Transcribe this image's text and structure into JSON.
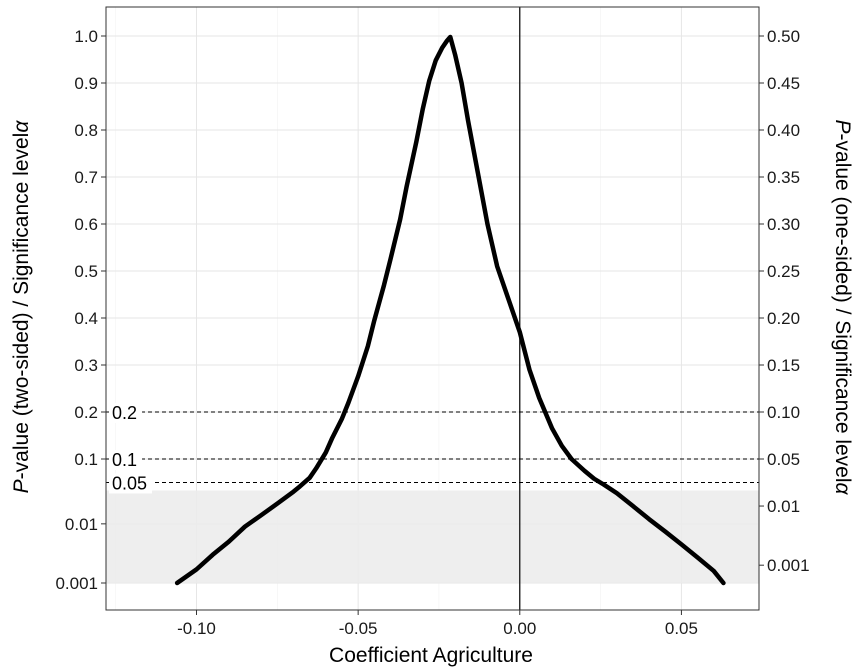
{
  "chart_data": {
    "type": "line",
    "xlabel": "Coefficient Agriculture",
    "ylabel_left_italic": "P",
    "ylabel_left_rest": "-value (two-sided) / Significance level",
    "ylabel_left_alpha": "α",
    "ylabel_right_italic": "P",
    "ylabel_right_rest": "-value (one-sided) / Significance level",
    "ylabel_right_alpha": "α",
    "xlim": [
      -0.128,
      0.074
    ],
    "x_ticks": [
      {
        "value": -0.1,
        "label": "-0.10"
      },
      {
        "value": -0.05,
        "label": "-0.05"
      },
      {
        "value": 0.0,
        "label": "0.00"
      },
      {
        "value": 0.05,
        "label": "0.05"
      }
    ],
    "y_scale": "linear above 0.05, log below 0.05",
    "y_ticks_left": [
      {
        "value": 1.0,
        "label": "1.0"
      },
      {
        "value": 0.9,
        "label": "0.9"
      },
      {
        "value": 0.8,
        "label": "0.8"
      },
      {
        "value": 0.7,
        "label": "0.7"
      },
      {
        "value": 0.6,
        "label": "0.6"
      },
      {
        "value": 0.5,
        "label": "0.5"
      },
      {
        "value": 0.4,
        "label": "0.4"
      },
      {
        "value": 0.3,
        "label": "0.3"
      },
      {
        "value": 0.2,
        "label": "0.2"
      },
      {
        "value": 0.1,
        "label": "0.1"
      },
      {
        "value": 0.01,
        "label": "0.01"
      },
      {
        "value": 0.001,
        "label": "0.001"
      }
    ],
    "y_ticks_right": [
      {
        "value": 1.0,
        "label": "0.50"
      },
      {
        "value": 0.9,
        "label": "0.45"
      },
      {
        "value": 0.8,
        "label": "0.40"
      },
      {
        "value": 0.7,
        "label": "0.35"
      },
      {
        "value": 0.6,
        "label": "0.30"
      },
      {
        "value": 0.5,
        "label": "0.25"
      },
      {
        "value": 0.4,
        "label": "0.20"
      },
      {
        "value": 0.3,
        "label": "0.15"
      },
      {
        "value": 0.2,
        "label": "0.10"
      },
      {
        "value": 0.1,
        "label": "0.05"
      },
      {
        "value": 0.02,
        "label": "0.01"
      },
      {
        "value": 0.002,
        "label": "0.001"
      }
    ],
    "hlines": [
      {
        "value": 0.2,
        "label": "0.2"
      },
      {
        "value": 0.1,
        "label": "0.1"
      },
      {
        "value": 0.05,
        "label": "0.05"
      }
    ],
    "vline_x": 0,
    "shaded_region_below": 0.05,
    "grid": true,
    "series": [
      {
        "x": [
          -0.106,
          -0.1,
          -0.095,
          -0.09,
          -0.085,
          -0.08,
          -0.075,
          -0.07,
          -0.068,
          -0.065,
          -0.063,
          -0.06,
          -0.058,
          -0.055,
          -0.053,
          -0.05,
          -0.047,
          -0.045,
          -0.042,
          -0.04,
          -0.037,
          -0.035,
          -0.032,
          -0.03,
          -0.028,
          -0.026,
          -0.024,
          -0.0225,
          -0.0215,
          -0.02,
          -0.018,
          -0.016,
          -0.013,
          -0.01,
          -0.007,
          -0.004,
          0.0,
          0.003,
          0.006,
          0.01,
          0.013,
          0.016,
          0.02,
          0.023,
          0.026,
          0.03,
          0.035,
          0.04,
          0.045,
          0.05,
          0.055,
          0.06,
          0.063
        ],
        "y": [
          0.001,
          0.0017,
          0.003,
          0.005,
          0.009,
          0.014,
          0.022,
          0.035,
          0.043,
          0.06,
          0.08,
          0.114,
          0.145,
          0.186,
          0.22,
          0.276,
          0.34,
          0.395,
          0.47,
          0.525,
          0.61,
          0.68,
          0.775,
          0.845,
          0.905,
          0.948,
          0.975,
          0.99,
          0.998,
          0.96,
          0.9,
          0.82,
          0.71,
          0.6,
          0.51,
          0.45,
          0.37,
          0.29,
          0.23,
          0.165,
          0.128,
          0.1,
          0.075,
          0.058,
          0.046,
          0.033,
          0.02,
          0.012,
          0.0074,
          0.0045,
          0.0027,
          0.0016,
          0.001
        ]
      }
    ]
  }
}
